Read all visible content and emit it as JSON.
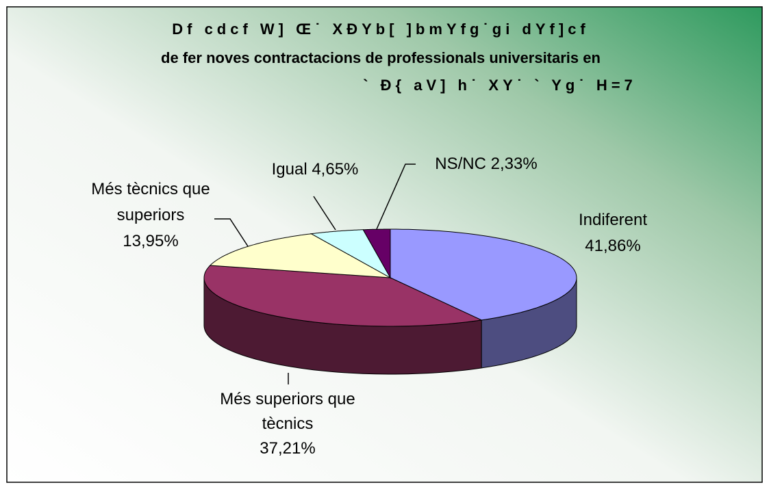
{
  "chart_data": {
    "type": "pie",
    "title": [
      "Df cdcf W] Œ˙ XÐYb[ ]bmYfg˙gi dYf]cf",
      "de fer noves contractacions de professionals universitaris en",
      "` Ð{ aV] h˙ XY˙ ` Yg˙ H=7"
    ],
    "categories": [
      "Indiferent",
      "Més superiors que tècnics",
      "Més tècnics que superiors",
      "Igual",
      "NS/NC"
    ],
    "values": [
      41.86,
      37.21,
      13.95,
      4.65,
      2.33
    ],
    "value_labels": [
      "41,86%",
      "37,21%",
      "13,95%",
      "4,65%",
      "2,33%"
    ],
    "colors": [
      "#9999ff",
      "#993366",
      "#ffffcc",
      "#ccffff",
      "#660066"
    ]
  }
}
